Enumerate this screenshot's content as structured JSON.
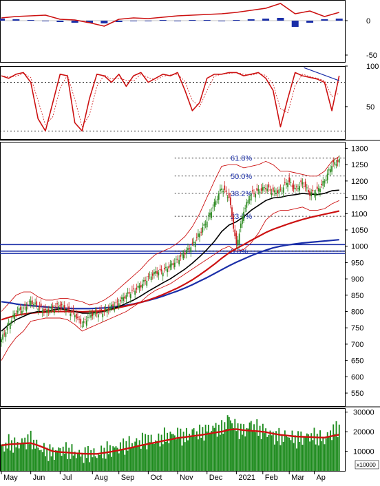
{
  "colors": {
    "frame": "#000000",
    "grid_dotted": "#000000",
    "price_up": "#2e8b22",
    "price_down": "#cc2222",
    "ma_fast": "#000000",
    "ma_mid": "#cc1111",
    "ma_slow": "#1a2ea8",
    "bollinger": "#cc1111",
    "horizontal_level": "#1a2ea8",
    "fib_label": "#1a2ea8",
    "volume_bar": "#1e8c1e",
    "volume_ma": "#cc1111",
    "macd_line": "#cc1111",
    "macd_hist": "#1a2ea8",
    "stoch_line": "#cc1111"
  },
  "chart_data": [
    {
      "panel": "macd",
      "type": "line",
      "yticks": [
        0,
        -50
      ],
      "ylim": [
        -60,
        30
      ],
      "x_index": [
        0,
        10,
        20,
        30,
        40,
        50,
        60,
        70,
        80,
        90,
        100,
        110,
        120,
        130,
        140,
        150,
        160,
        170,
        180,
        190,
        200,
        210,
        220,
        230
      ],
      "series": [
        {
          "role": "line",
          "values": [
            4,
            6,
            7,
            8,
            2,
            1,
            -3,
            -8,
            2,
            4,
            3,
            5,
            7,
            8,
            9,
            10,
            12,
            15,
            18,
            25,
            10,
            14,
            6,
            12
          ]
        },
        {
          "role": "histogram",
          "values": [
            3,
            2,
            1,
            0,
            -2,
            -3,
            -3,
            -4,
            -2,
            -1,
            0,
            1,
            0,
            1,
            1,
            0,
            1,
            2,
            3,
            4,
            -9,
            -3,
            2,
            3
          ]
        }
      ]
    },
    {
      "panel": "stochastic",
      "type": "line",
      "yticks": [
        100,
        50
      ],
      "ylim": [
        10,
        100
      ],
      "dotted_levels": [
        80,
        20
      ],
      "x_index": [
        0,
        5,
        10,
        15,
        20,
        25,
        30,
        35,
        40,
        45,
        50,
        55,
        60,
        65,
        70,
        75,
        80,
        85,
        90,
        95,
        100,
        105,
        110,
        115,
        120,
        125,
        130,
        135,
        140,
        145,
        150,
        155,
        160,
        165,
        170,
        175,
        180,
        185,
        190,
        195,
        200,
        205,
        210,
        215,
        220,
        225,
        230
      ],
      "series": [
        {
          "role": "line",
          "values": [
            88,
            85,
            90,
            92,
            80,
            35,
            20,
            55,
            90,
            88,
            30,
            20,
            60,
            90,
            88,
            80,
            90,
            75,
            88,
            92,
            80,
            85,
            90,
            88,
            92,
            70,
            45,
            55,
            85,
            90,
            90,
            92,
            92,
            88,
            90,
            92,
            85,
            70,
            25,
            60,
            92,
            88,
            86,
            84,
            80,
            45,
            88
          ]
        }
      ]
    },
    {
      "panel": "price",
      "type": "candlestick",
      "x_axis": "date",
      "yticks": [
        550,
        600,
        650,
        700,
        750,
        800,
        850,
        900,
        950,
        1000,
        1050,
        1100,
        1150,
        1200,
        1250,
        1300
      ],
      "ylim": [
        510,
        1320
      ],
      "horizontal_levels": [
        1005,
        985,
        978
      ],
      "fibonacci": [
        {
          "label": "61.8%",
          "value": 1270
        },
        {
          "label": "50.0%",
          "value": 1215
        },
        {
          "label": "38.2%",
          "value": 1162
        },
        {
          "label": "23.6%",
          "value": 1092
        },
        {
          "label": "0.0%",
          "value": 985
        }
      ],
      "x_index": [
        0,
        5,
        10,
        15,
        20,
        25,
        30,
        35,
        40,
        45,
        50,
        55,
        60,
        65,
        70,
        75,
        80,
        85,
        90,
        95,
        100,
        105,
        110,
        115,
        120,
        125,
        130,
        135,
        140,
        145,
        150,
        155,
        160,
        165,
        170,
        175,
        180,
        185,
        190,
        195,
        200,
        205,
        210,
        215,
        220,
        225,
        230
      ],
      "close": [
        715,
        760,
        800,
        810,
        830,
        815,
        800,
        810,
        820,
        805,
        790,
        760,
        790,
        795,
        800,
        815,
        830,
        850,
        865,
        880,
        905,
        920,
        925,
        940,
        960,
        980,
        1005,
        1040,
        1080,
        1130,
        1180,
        1150,
        1000,
        1110,
        1160,
        1170,
        1180,
        1165,
        1170,
        1200,
        1175,
        1195,
        1160,
        1170,
        1200,
        1250,
        1262
      ],
      "series": [
        {
          "role": "ma_fast",
          "values": [
            740,
            760,
            775,
            785,
            795,
            800,
            800,
            805,
            808,
            805,
            800,
            795,
            795,
            797,
            800,
            808,
            815,
            825,
            835,
            848,
            862,
            875,
            888,
            900,
            915,
            930,
            948,
            968,
            990,
            1015,
            1045,
            1065,
            1075,
            1090,
            1110,
            1125,
            1140,
            1148,
            1150,
            1155,
            1158,
            1162,
            1160,
            1158,
            1162,
            1170,
            1172
          ]
        },
        {
          "role": "ma_mid",
          "values": [
            775,
            782,
            788,
            792,
            795,
            797,
            798,
            800,
            800,
            800,
            800,
            799,
            800,
            801,
            803,
            807,
            812,
            817,
            822,
            828,
            835,
            843,
            852,
            862,
            872,
            884,
            897,
            912,
            928,
            945,
            963,
            980,
            993,
            1005,
            1018,
            1030,
            1042,
            1052,
            1060,
            1068,
            1075,
            1082,
            1088,
            1093,
            1098,
            1103,
            1108
          ]
        },
        {
          "role": "ma_slow",
          "values": [
            830,
            827,
            823,
            820,
            818,
            816,
            814,
            812,
            811,
            810,
            809,
            809,
            809,
            810,
            811,
            813,
            816,
            819,
            823,
            828,
            834,
            840,
            847,
            855,
            863,
            872,
            882,
            893,
            904,
            916,
            928,
            940,
            951,
            961,
            971,
            980,
            988,
            995,
            1000,
            1004,
            1007,
            1010,
            1012,
            1014,
            1016,
            1018,
            1020
          ]
        },
        {
          "role": "bollinger_upper",
          "values": [
            800,
            825,
            850,
            860,
            860,
            845,
            835,
            835,
            840,
            840,
            835,
            830,
            820,
            825,
            835,
            850,
            870,
            890,
            910,
            930,
            955,
            975,
            985,
            995,
            1010,
            1030,
            1060,
            1100,
            1150,
            1200,
            1245,
            1250,
            1250,
            1240,
            1245,
            1250,
            1260,
            1250,
            1230,
            1230,
            1225,
            1220,
            1215,
            1215,
            1230,
            1260,
            1275
          ]
        },
        {
          "role": "bollinger_lower",
          "values": [
            650,
            690,
            720,
            740,
            770,
            775,
            780,
            780,
            780,
            775,
            760,
            740,
            750,
            760,
            770,
            780,
            790,
            800,
            815,
            830,
            850,
            865,
            875,
            885,
            900,
            915,
            930,
            945,
            960,
            975,
            990,
            1000,
            985,
            990,
            1010,
            1040,
            1080,
            1100,
            1110,
            1110,
            1115,
            1120,
            1110,
            1110,
            1115,
            1130,
            1140
          ]
        }
      ]
    },
    {
      "panel": "volume",
      "type": "bar",
      "yticks": [
        30000,
        20000,
        10000
      ],
      "ylim": [
        0,
        32000
      ],
      "unit_label": "x10000",
      "x_index": [
        0,
        5,
        10,
        15,
        20,
        25,
        30,
        35,
        40,
        45,
        50,
        55,
        60,
        65,
        70,
        75,
        80,
        85,
        90,
        95,
        100,
        105,
        110,
        115,
        120,
        125,
        130,
        135,
        140,
        145,
        150,
        155,
        160,
        165,
        170,
        175,
        180,
        185,
        190,
        195,
        200,
        205,
        210,
        215,
        220,
        225,
        230
      ],
      "values": [
        12000,
        14000,
        13000,
        15000,
        16000,
        12000,
        10000,
        9000,
        11000,
        10000,
        9000,
        8000,
        9000,
        8000,
        10000,
        11000,
        12000,
        13000,
        14000,
        15000,
        16000,
        15000,
        17000,
        18000,
        19000,
        17000,
        20000,
        19000,
        21000,
        22000,
        21000,
        27000,
        22000,
        20000,
        24000,
        21000,
        20000,
        18000,
        17000,
        18000,
        16000,
        17000,
        18000,
        17000,
        16000,
        20000,
        22000
      ],
      "series": [
        {
          "role": "volume_ma",
          "values": [
            13000,
            13500,
            13800,
            14000,
            14200,
            13000,
            11500,
            10000,
            9600,
            9400,
            9000,
            8800,
            8700,
            8700,
            9200,
            9800,
            10500,
            11300,
            12100,
            13000,
            13800,
            14500,
            15300,
            16000,
            16800,
            17200,
            17800,
            18200,
            18800,
            19500,
            20000,
            21000,
            21300,
            20800,
            20500,
            20200,
            19800,
            19000,
            18400,
            18000,
            17600,
            17400,
            17300,
            17100,
            17000,
            17800,
            18500
          ]
        }
      ]
    }
  ],
  "x_labels": [
    "May",
    "Jun",
    "Jul",
    "Aug",
    "Sep",
    "Oct",
    "Nov",
    "Dec",
    "2021",
    "Feb",
    "Mar",
    "Ap"
  ],
  "x_label_index": [
    0,
    20,
    40,
    62,
    80,
    100,
    120,
    140,
    160,
    178,
    196,
    213
  ]
}
